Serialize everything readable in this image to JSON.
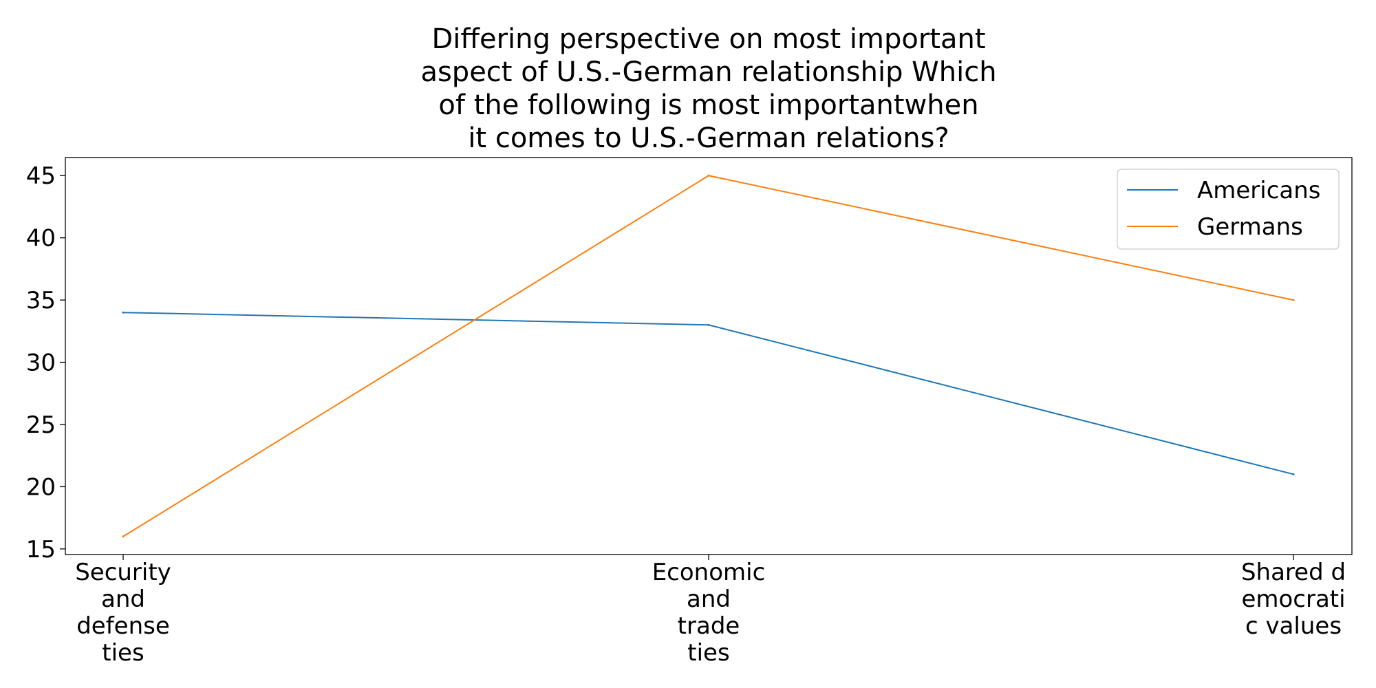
{
  "chart_data": {
    "type": "line",
    "title_lines": [
      "Differing perspective on most important",
      "aspect of U.S.-German relationship Which",
      "of the following is most importantwhen",
      "it comes to U.S.-German relations?"
    ],
    "categories": [
      [
        "Security",
        "and",
        "defense",
        "ties"
      ],
      [
        "Economic",
        "and",
        "trade",
        "ties"
      ],
      [
        "Shared d",
        "emocrati",
        "c values"
      ]
    ],
    "series": [
      {
        "name": "Americans",
        "values": [
          34,
          33,
          21
        ],
        "color": "#1f77b4"
      },
      {
        "name": "Germans",
        "values": [
          16,
          45,
          35
        ],
        "color": "#ff7f0e"
      }
    ],
    "yticks": [
      15,
      20,
      25,
      30,
      35,
      40,
      45
    ],
    "ylim": [
      14.55,
      46.45
    ],
    "xlabel": "",
    "ylabel": "",
    "grid": false,
    "legend_position": "top-right"
  }
}
